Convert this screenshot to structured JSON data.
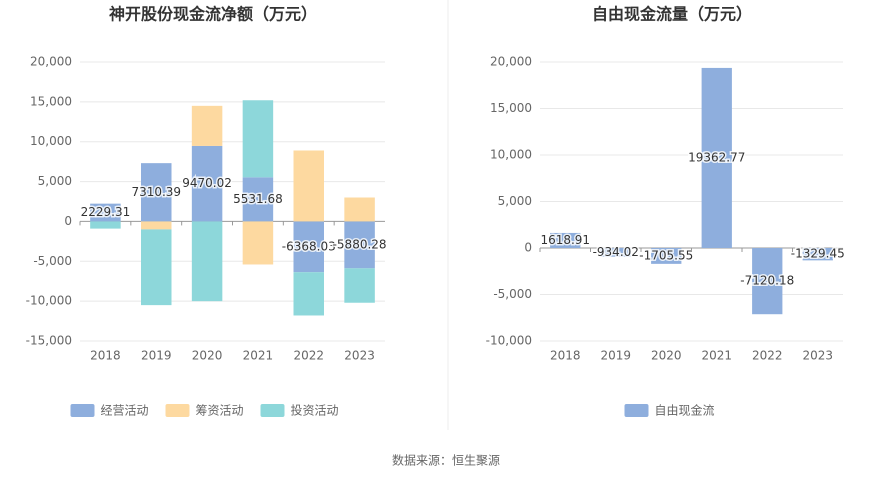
{
  "chart_data": [
    {
      "type": "stacked-bar",
      "title": "神开股份现金流净额（万元）",
      "categories": [
        "2018",
        "2019",
        "2020",
        "2021",
        "2022",
        "2023"
      ],
      "series": [
        {
          "name": "经营活动",
          "color": "#8eaedd",
          "values": [
            2229.31,
            7310.39,
            9470.02,
            5531.68,
            -6368.03,
            -5880.28
          ]
        },
        {
          "name": "筹资活动",
          "color": "#fdd9a0",
          "values": [
            0,
            -1000,
            5030,
            -5400,
            8900,
            3000
          ]
        },
        {
          "name": "投资活动",
          "color": "#8dd7da",
          "values": [
            -900,
            -9500,
            -10000,
            9670,
            -5430,
            -4320
          ]
        }
      ],
      "labeled_series": 0,
      "ylim": [
        -15000,
        20000
      ],
      "yticks": [
        {
          "value": -15000,
          "label": "-15,000"
        },
        {
          "value": -10000,
          "label": "-10,000"
        },
        {
          "value": -5000,
          "label": "-5,000"
        },
        0,
        {
          "value": 5000,
          "label": "5,000"
        },
        {
          "value": 10000,
          "label": "10,000"
        },
        {
          "value": 15000,
          "label": "15,000"
        },
        {
          "value": 20000,
          "label": "20,000"
        }
      ],
      "grid": true
    },
    {
      "type": "bar",
      "title": "自由现金流量（万元）",
      "categories": [
        "2018",
        "2019",
        "2020",
        "2021",
        "2022",
        "2023"
      ],
      "series": [
        {
          "name": "自由现金流",
          "color": "#8eaedd",
          "values": [
            1618.91,
            -934.02,
            -1705.55,
            19362.77,
            -7120.18,
            -1329.45
          ]
        }
      ],
      "labeled_series": 0,
      "ylim": [
        -10000,
        20000
      ],
      "yticks": [
        {
          "value": -10000,
          "label": "-10,000"
        },
        {
          "value": -5000,
          "label": "-5,000"
        },
        0,
        {
          "value": 5000,
          "label": "5,000"
        },
        {
          "value": 10000,
          "label": "10,000"
        },
        {
          "value": 15000,
          "label": "15,000"
        },
        {
          "value": 20000,
          "label": "20,000"
        }
      ],
      "grid": true
    }
  ],
  "source": "数据来源：恒生聚源"
}
